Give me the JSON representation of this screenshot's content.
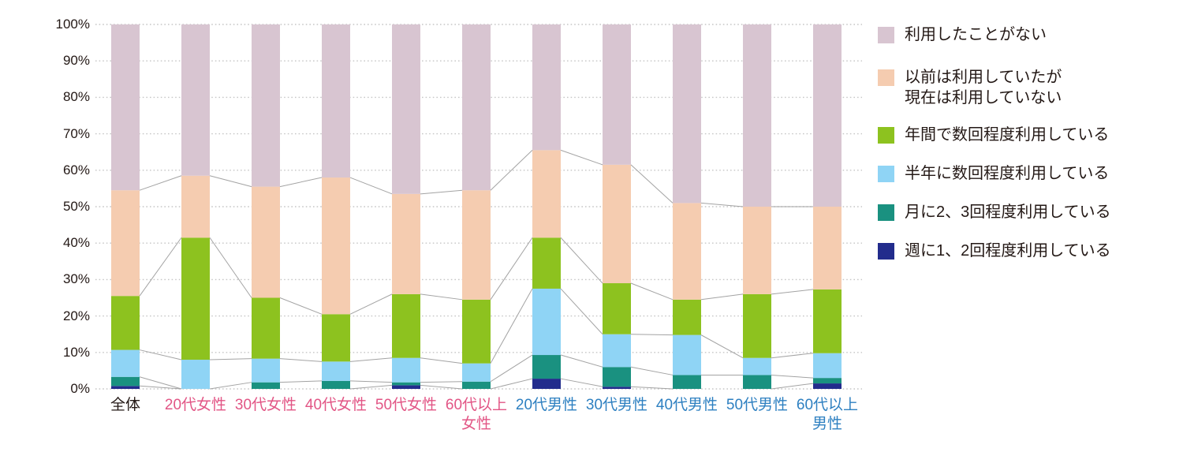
{
  "chart_data": {
    "type": "bar",
    "variant": "stacked-percent-column",
    "title": "",
    "xlabel": "",
    "ylabel": "",
    "ylim": [
      0,
      100
    ],
    "grid": "horizontal-dotted",
    "legend_position": "right",
    "y_ticks": [
      "0%",
      "10%",
      "20%",
      "30%",
      "40%",
      "50%",
      "60%",
      "70%",
      "80%",
      "90%",
      "100%"
    ],
    "categories": [
      {
        "label": "全体",
        "lines": [
          "全体"
        ],
        "color": "#231815"
      },
      {
        "label": "20代女性",
        "lines": [
          "20代女性"
        ],
        "color": "#e25585"
      },
      {
        "label": "30代女性",
        "lines": [
          "30代女性"
        ],
        "color": "#e25585"
      },
      {
        "label": "40代女性",
        "lines": [
          "40代女性"
        ],
        "color": "#e25585"
      },
      {
        "label": "50代女性",
        "lines": [
          "50代女性"
        ],
        "color": "#e25585"
      },
      {
        "label": "60代以上女性",
        "lines": [
          "60代以上",
          "女性"
        ],
        "color": "#e25585"
      },
      {
        "label": "20代男性",
        "lines": [
          "20代男性"
        ],
        "color": "#2e80c1"
      },
      {
        "label": "30代男性",
        "lines": [
          "30代男性"
        ],
        "color": "#2e80c1"
      },
      {
        "label": "40代男性",
        "lines": [
          "40代男性"
        ],
        "color": "#2e80c1"
      },
      {
        "label": "50代男性",
        "lines": [
          "50代男性"
        ],
        "color": "#2e80c1"
      },
      {
        "label": "60代以上男性",
        "lines": [
          "60代以上",
          "男性"
        ],
        "color": "#2e80c1"
      }
    ],
    "series": [
      {
        "name": "週に1、2回程度利用している",
        "legend_lines": [
          "週に1、2回程度利用している"
        ],
        "color": "#222c8c",
        "values": [
          0.8,
          0,
          0,
          0,
          1.0,
          0,
          2.8,
          0.6,
          0,
          0,
          1.5
        ]
      },
      {
        "name": "月に2、3回程度利用している",
        "legend_lines": [
          "月に2、3回程度利用している"
        ],
        "color": "#1a9180",
        "values": [
          2.5,
          0,
          1.8,
          2.2,
          0.8,
          2.0,
          6.5,
          5.4,
          3.8,
          3.8,
          1.5
        ]
      },
      {
        "name": "半年に数回程度利用している",
        "legend_lines": [
          "半年に数回程度利用している"
        ],
        "color": "#8fd4f5",
        "values": [
          7.4,
          8.0,
          6.5,
          5.3,
          6.7,
          5.0,
          18.2,
          9.0,
          11.0,
          4.7,
          6.8
        ]
      },
      {
        "name": "年間で数回程度利用している",
        "legend_lines": [
          "年間で数回程度利用している"
        ],
        "color": "#8dc21f",
        "values": [
          14.8,
          33.5,
          16.7,
          13.0,
          17.5,
          17.5,
          14.0,
          14.0,
          9.7,
          17.5,
          17.5
        ]
      },
      {
        "name": "以前は利用していたが現在は利用していない",
        "legend_lines": [
          "以前は利用していたが",
          "現在は利用していない"
        ],
        "color": "#f5ccb0",
        "values": [
          29.0,
          17.0,
          30.5,
          37.5,
          27.5,
          30.0,
          24.0,
          32.5,
          26.5,
          24.0,
          22.7
        ]
      },
      {
        "name": "利用したことがない",
        "legend_lines": [
          "利用したことがない"
        ],
        "color": "#d8c5d1",
        "values": [
          45.5,
          41.5,
          44.5,
          42.0,
          46.5,
          45.5,
          34.5,
          38.5,
          49.0,
          50.0,
          50.0
        ]
      }
    ],
    "style_colors": {
      "gridline": "#c6c6c6",
      "connector_line": "#a3a3a3",
      "axis_text": "#231815",
      "female_label": "#e25585",
      "male_label": "#2e80c1"
    }
  }
}
